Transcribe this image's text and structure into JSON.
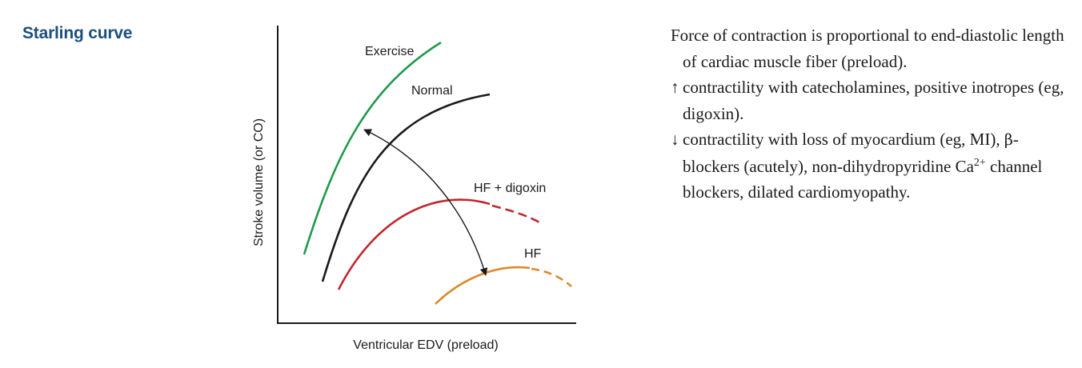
{
  "heading": "Starling curve",
  "diagram": {
    "xlabel": "Ventricular EDV (preload)",
    "ylabel": "Stroke volume (or CO)",
    "curves": [
      {
        "key": "exercise",
        "label": "Exercise",
        "color": "#1f9a4a"
      },
      {
        "key": "normal",
        "label": "Normal",
        "color": "#1a1a1a"
      },
      {
        "key": "hf_digoxin",
        "label": "HF + digoxin",
        "color": "#c0282e"
      },
      {
        "key": "hf",
        "label": "HF",
        "color": "#d98b2b"
      }
    ]
  },
  "description": {
    "line1": "Force of contraction is proportional to end-diastolic length of cardiac muscle fiber (preload).",
    "up_symbol": "↑",
    "line2": "contractility with catecholamines, positive inotropes (eg, digoxin).",
    "down_symbol": "↓",
    "line3_a": "contractility with loss of myocardium (eg, MI),",
    "beta": "β",
    "line3_b": "-blockers (acutely), non-dihydropyridine Ca",
    "line3_sup": "2+",
    "line3_c": "channel blockers, dilated cardiomyopathy."
  }
}
